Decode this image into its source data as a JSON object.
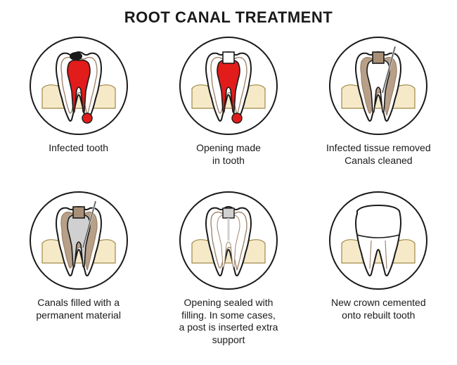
{
  "title": "ROOT CANAL TREATMENT",
  "title_fontsize": 22,
  "title_color": "#1a1a1a",
  "layout": {
    "cols": 3,
    "rows": 2
  },
  "circle": {
    "diameter": 140,
    "border_color": "#1a1a1a",
    "border_width": 2,
    "background": "#ffffff"
  },
  "caption_fontsize": 14,
  "caption_color": "#1a1a1a",
  "colors": {
    "outline": "#1a1a1a",
    "gum": "#f5e9c8",
    "gum_stroke": "#a08a48",
    "enamel": "#ffffff",
    "dentin": "#b8a088",
    "dentin_dark": "#a89078",
    "pulp_infected": "#e21b1b",
    "abscess": "#e21b1b",
    "decay": "#1a1a1a",
    "pulp_empty": "#ffffff",
    "filling": "#d0d0d0",
    "file": "#cccccc",
    "crown": "#ffffff",
    "inner_line": "#a0866c"
  },
  "steps": [
    {
      "id": "step1",
      "caption": "Infected tooth",
      "variant": "infected",
      "pulp_fill": "pulp_infected",
      "show_decay": true,
      "show_abscess": true,
      "show_opening": false,
      "show_file": false,
      "show_crown": false
    },
    {
      "id": "step2",
      "caption": "Opening made\nin tooth",
      "variant": "opened",
      "pulp_fill": "pulp_infected",
      "show_decay": false,
      "show_abscess": true,
      "show_opening": true,
      "show_file": false,
      "show_crown": false
    },
    {
      "id": "step3",
      "caption": "Infected tissue removed\nCanals cleaned",
      "variant": "cleaned",
      "pulp_fill": "pulp_empty",
      "show_decay": false,
      "show_abscess": false,
      "show_opening": true,
      "show_file": true,
      "show_crown": false
    },
    {
      "id": "step4",
      "caption": "Canals filled with a\npermanent material",
      "variant": "filled",
      "pulp_fill": "filling",
      "show_decay": false,
      "show_abscess": false,
      "show_opening": true,
      "show_file": true,
      "show_crown": false
    },
    {
      "id": "step5",
      "caption": "Opening sealed with\nfilling. In some cases,\na post is inserted extra\nsupport",
      "variant": "sealed",
      "pulp_fill": "pulp_empty",
      "show_decay": false,
      "show_abscess": false,
      "show_opening": false,
      "show_file": false,
      "show_crown": false,
      "show_seal": true
    },
    {
      "id": "step6",
      "caption": "New crown cemented\nonto rebuilt tooth",
      "variant": "crown",
      "pulp_fill": "pulp_empty",
      "show_decay": false,
      "show_abscess": false,
      "show_opening": false,
      "show_file": false,
      "show_crown": true
    }
  ]
}
